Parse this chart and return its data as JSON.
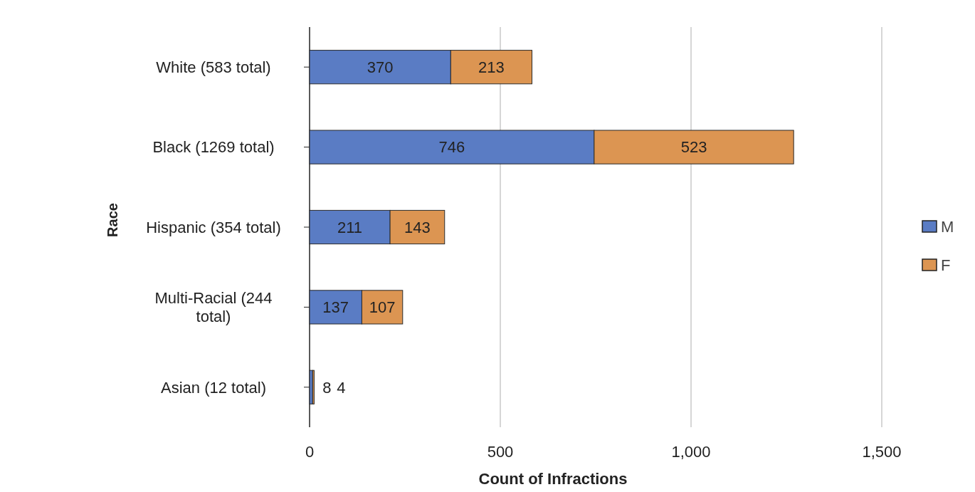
{
  "chart_data": {
    "type": "bar",
    "orientation": "horizontal",
    "stacked": true,
    "xlabel": "Count of Infractions",
    "ylabel": "Race",
    "categories": [
      "White  (583 total)",
      "Black  (1269 total)",
      "Hispanic  (354 total)",
      "Multi-Racial  (244 total)",
      "Asian  (12 total)"
    ],
    "series": [
      {
        "name": "M",
        "color": "#5a7cc4",
        "values": [
          370,
          746,
          211,
          137,
          8
        ]
      },
      {
        "name": "F",
        "color": "#dc9552",
        "values": [
          213,
          523,
          143,
          107,
          4
        ]
      }
    ],
    "xlim": [
      0,
      1500
    ],
    "xticks": [
      0,
      500,
      {
        "value": 1000,
        "label": "1,000"
      },
      {
        "value": 1500,
        "label": "1,500"
      }
    ],
    "grid": "x",
    "legend": "right",
    "data_labels": true
  }
}
